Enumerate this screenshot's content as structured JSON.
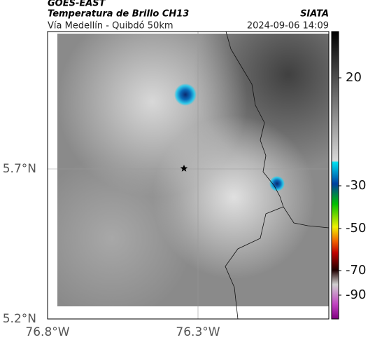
{
  "header": {
    "source": "GOES-EAST",
    "title": "Temperatura de Brillo CH13",
    "route": "Vía Medellín - Quibdó 50km",
    "brand": "SIATA",
    "timestamp": "2024-09-06 14:09"
  },
  "map": {
    "lat_labels": [
      "5.7°N",
      "5.2°N"
    ],
    "lon_labels": [
      "76.8°W",
      "76.3°W"
    ]
  },
  "colorbar": {
    "labels": [
      "20",
      "-30",
      "-50",
      "-70",
      "-90"
    ]
  }
}
